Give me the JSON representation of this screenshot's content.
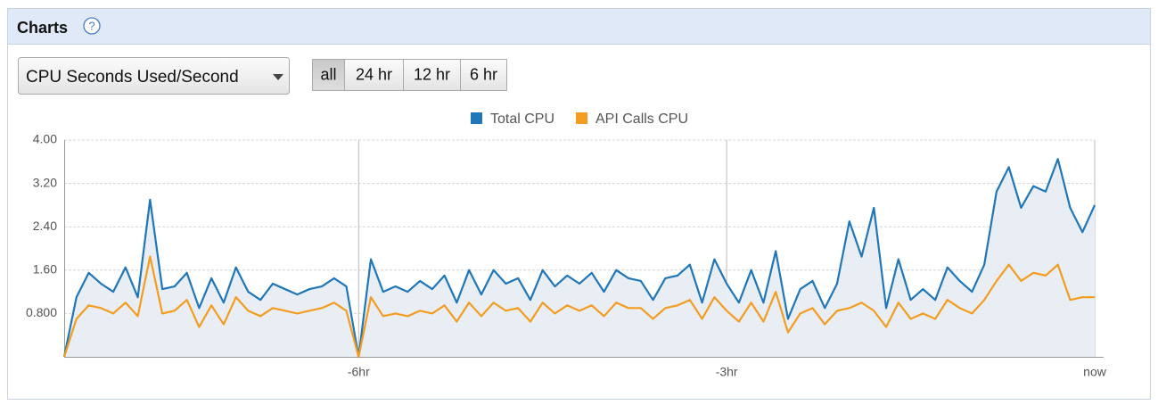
{
  "header": {
    "title": "Charts",
    "help_icon": "?"
  },
  "controls": {
    "metric": "CPU Seconds Used/Second",
    "ranges": [
      "all",
      "24 hr",
      "12 hr",
      "6 hr"
    ],
    "selected_range": 0
  },
  "chart_data": {
    "type": "line",
    "legend": "top",
    "x": [
      -8.4,
      -8.3,
      -8.2,
      -8.1,
      -8,
      -7.9,
      -7.8,
      -7.7,
      -7.6,
      -7.5,
      -7.4,
      -7.3,
      -7.2,
      -7.1,
      -7,
      -6.9,
      -6.8,
      -6.7,
      -6.6,
      -6.5,
      -6.4,
      -6.3,
      -6.2,
      -6.1,
      -6,
      -5.9,
      -5.8,
      -5.7,
      -5.6,
      -5.5,
      -5.4,
      -5.3,
      -5.2,
      -5.1,
      -5,
      -4.9,
      -4.8,
      -4.7,
      -4.6,
      -4.5,
      -4.4,
      -4.3,
      -4.2,
      -4.1,
      -4,
      -3.9,
      -3.8,
      -3.7,
      -3.6,
      -3.5,
      -3.4,
      -3.3,
      -3.2,
      -3.1,
      -3,
      -2.9,
      -2.8,
      -2.7,
      -2.6,
      -2.5,
      -2.4,
      -2.3,
      -2.2,
      -2.1,
      -2,
      -1.9,
      -1.8,
      -1.7,
      -1.6,
      -1.5,
      -1.4,
      -1.3,
      -1.2,
      -1.1,
      -1,
      -0.9,
      -0.8,
      -0.7,
      -0.6,
      -0.5,
      -0.4,
      -0.3,
      -0.2,
      -0.1,
      0
    ],
    "series": [
      {
        "name": "Total CPU",
        "color": "#1f77b9",
        "area_color": "#e9eef4",
        "values": [
          0,
          1.1,
          1.55,
          1.35,
          1.2,
          1.65,
          1.1,
          2.9,
          1.25,
          1.3,
          1.55,
          0.9,
          1.45,
          1.0,
          1.65,
          1.2,
          1.05,
          1.35,
          1.25,
          1.15,
          1.25,
          1.3,
          1.45,
          1.3,
          0,
          1.8,
          1.2,
          1.3,
          1.2,
          1.4,
          1.25,
          1.5,
          1.0,
          1.6,
          1.15,
          1.6,
          1.35,
          1.45,
          1.05,
          1.6,
          1.3,
          1.5,
          1.35,
          1.55,
          1.2,
          1.6,
          1.45,
          1.4,
          1.05,
          1.45,
          1.5,
          1.7,
          1.0,
          1.8,
          1.35,
          1.0,
          1.6,
          1.0,
          1.95,
          0.7,
          1.25,
          1.4,
          0.9,
          1.35,
          2.5,
          1.85,
          2.75,
          0.9,
          1.8,
          1.05,
          1.25,
          1.05,
          1.65,
          1.4,
          1.2,
          1.7,
          3.05,
          3.5,
          2.75,
          3.15,
          3.05,
          3.65,
          2.75,
          2.3,
          2.8
        ]
      },
      {
        "name": "API Calls CPU",
        "color": "#f39c1f",
        "values": [
          0,
          0.7,
          0.95,
          0.9,
          0.8,
          1.0,
          0.75,
          1.85,
          0.8,
          0.85,
          1.05,
          0.55,
          0.95,
          0.6,
          1.1,
          0.85,
          0.75,
          0.9,
          0.85,
          0.8,
          0.85,
          0.9,
          1.0,
          0.85,
          0,
          1.1,
          0.75,
          0.8,
          0.75,
          0.85,
          0.8,
          0.95,
          0.65,
          1.0,
          0.75,
          1.0,
          0.85,
          0.9,
          0.65,
          1.0,
          0.8,
          0.95,
          0.85,
          0.95,
          0.75,
          1.0,
          0.9,
          0.9,
          0.7,
          0.9,
          0.95,
          1.05,
          0.7,
          1.1,
          0.85,
          0.65,
          1.0,
          0.65,
          1.2,
          0.45,
          0.8,
          0.9,
          0.6,
          0.85,
          0.9,
          1.0,
          0.85,
          0.55,
          1.0,
          0.7,
          0.8,
          0.7,
          1.05,
          0.9,
          0.8,
          1.05,
          1.4,
          1.7,
          1.4,
          1.55,
          1.5,
          1.7,
          1.05,
          1.1,
          1.1
        ]
      }
    ],
    "xlim": [
      -8.4,
      0
    ],
    "xticks": [
      {
        "value": -6,
        "label": "-6hr"
      },
      {
        "value": -3,
        "label": "-3hr"
      },
      {
        "value": 0,
        "label": "now"
      }
    ],
    "ylim": [
      0,
      4
    ],
    "yticks": [
      {
        "value": 0.8,
        "label": "0.800"
      },
      {
        "value": 1.6,
        "label": "1.60"
      },
      {
        "value": 2.4,
        "label": "2.40"
      },
      {
        "value": 3.2,
        "label": "3.20"
      },
      {
        "value": 4,
        "label": "4.00"
      }
    ],
    "grid": true
  }
}
